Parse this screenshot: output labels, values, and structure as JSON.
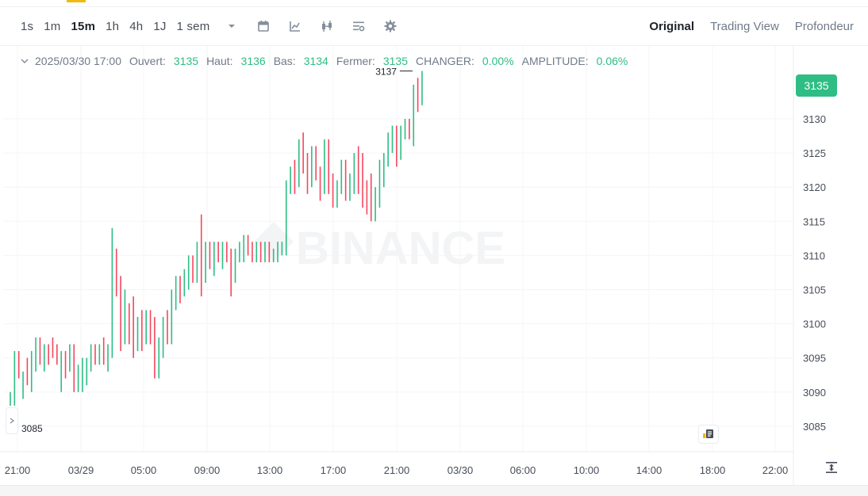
{
  "toolbar": {
    "intervals": [
      "1s",
      "1m",
      "15m",
      "1h",
      "4h",
      "1J",
      "1 sem"
    ],
    "active_interval": "15m",
    "views": [
      "Original",
      "Trading View",
      "Profondeur"
    ],
    "active_view": "Original",
    "icons": [
      "caret-down-icon",
      "calendar-icon",
      "line-chart-icon",
      "candles-icon",
      "indicators-icon",
      "gear-icon"
    ]
  },
  "legend": {
    "date": "2025/03/30 17:00",
    "open_label": "Ouvert:",
    "open": "3135",
    "high_label": "Haut:",
    "high": "3136",
    "low_label": "Bas:",
    "low": "3134",
    "close_label": "Fermer:",
    "close": "3135",
    "change_label": "CHANGER:",
    "change": "0.00%",
    "amplitude_label": "AMPLITUDE:",
    "amplitude": "0.06%"
  },
  "current_price": "3135",
  "max_marker": "3137",
  "min_marker": "3085",
  "colors": {
    "up": "#2ebd85",
    "down": "#f6465d",
    "accent": "#f0b90b"
  },
  "chart_data": {
    "type": "ohlc",
    "interval": "15m",
    "y_ticks": [
      3130,
      3125,
      3120,
      3115,
      3110,
      3105,
      3100,
      3095,
      3090,
      3085
    ],
    "x_ticks": [
      "21:00",
      "03/29",
      "05:00",
      "09:00",
      "13:00",
      "17:00",
      "21:00",
      "03/30",
      "06:00",
      "10:00",
      "14:00",
      "18:00",
      "22:00"
    ],
    "ylim": [
      3080,
      3141
    ],
    "candles": [
      [
        3088,
        3090,
        3088,
        3089
      ],
      [
        3089,
        3096,
        3088,
        3095
      ],
      [
        3095,
        3096,
        3092,
        3093
      ],
      [
        3091,
        3093,
        3089,
        3092
      ],
      [
        3093,
        3095,
        3091,
        3092
      ],
      [
        3092,
        3096,
        3090,
        3095
      ],
      [
        3094,
        3098,
        3093,
        3097
      ],
      [
        3096,
        3098,
        3094,
        3095
      ],
      [
        3094,
        3097,
        3093,
        3096
      ],
      [
        3096,
        3097,
        3094,
        3095
      ],
      [
        3097,
        3098,
        3095,
        3096
      ],
      [
        3096,
        3097,
        3094,
        3094
      ],
      [
        3093,
        3096,
        3090,
        3094
      ],
      [
        3094,
        3096,
        3092,
        3093
      ],
      [
        3094,
        3097,
        3093,
        3096
      ],
      [
        3096,
        3097,
        3090,
        3092
      ],
      [
        3091,
        3094,
        3090,
        3092
      ],
      [
        3091,
        3095,
        3090,
        3094
      ],
      [
        3092,
        3095,
        3091,
        3094
      ],
      [
        3094,
        3097,
        3093,
        3096
      ],
      [
        3096,
        3097,
        3094,
        3095
      ],
      [
        3095,
        3097,
        3094,
        3096
      ],
      [
        3096,
        3098,
        3094,
        3095
      ],
      [
        3094,
        3097,
        3093,
        3096
      ],
      [
        3096,
        3114,
        3095,
        3110
      ],
      [
        3109,
        3111,
        3104,
        3106
      ],
      [
        3106,
        3107,
        3096,
        3098
      ],
      [
        3098,
        3105,
        3097,
        3103
      ],
      [
        3102,
        3103,
        3097,
        3099
      ],
      [
        3099,
        3104,
        3095,
        3096
      ],
      [
        3098,
        3101,
        3096,
        3100
      ],
      [
        3100,
        3102,
        3096,
        3097
      ],
      [
        3098,
        3102,
        3097,
        3101
      ],
      [
        3101,
        3102,
        3097,
        3098
      ],
      [
        3097,
        3101,
        3092,
        3094
      ],
      [
        3094,
        3098,
        3092,
        3097
      ],
      [
        3097,
        3101,
        3095,
        3100
      ],
      [
        3100,
        3102,
        3097,
        3099
      ],
      [
        3098,
        3105,
        3097,
        3104
      ],
      [
        3104,
        3107,
        3102,
        3106
      ],
      [
        3106,
        3107,
        3103,
        3105
      ],
      [
        3105,
        3108,
        3104,
        3107
      ],
      [
        3107,
        3110,
        3105,
        3108
      ],
      [
        3109,
        3110,
        3106,
        3107
      ],
      [
        3107,
        3112,
        3106,
        3111
      ],
      [
        3111,
        3116,
        3104,
        3108
      ],
      [
        3107,
        3112,
        3106,
        3111
      ],
      [
        3111,
        3112,
        3108,
        3109
      ],
      [
        3109,
        3112,
        3107,
        3111
      ],
      [
        3111,
        3112,
        3109,
        3110
      ],
      [
        3110,
        3112,
        3108,
        3111
      ],
      [
        3111,
        3112,
        3109,
        3110
      ],
      [
        3110,
        3111,
        3104,
        3106
      ],
      [
        3107,
        3111,
        3106,
        3110
      ],
      [
        3110,
        3112,
        3109,
        3111
      ],
      [
        3111,
        3113,
        3109,
        3112
      ],
      [
        3112,
        3113,
        3110,
        3111
      ],
      [
        3111,
        3112,
        3109,
        3110
      ],
      [
        3110,
        3112,
        3109,
        3111
      ],
      [
        3111,
        3112,
        3109,
        3110
      ],
      [
        3110,
        3112,
        3109,
        3111
      ],
      [
        3111,
        3112,
        3109,
        3110
      ],
      [
        3110,
        3111,
        3109,
        3110
      ],
      [
        3110,
        3112,
        3109,
        3111
      ],
      [
        3111,
        3112,
        3110,
        3111
      ],
      [
        3111,
        3121,
        3110,
        3120
      ],
      [
        3120,
        3123,
        3119,
        3122
      ],
      [
        3122,
        3124,
        3119,
        3120
      ],
      [
        3120,
        3127,
        3120,
        3126
      ],
      [
        3126,
        3128,
        3122,
        3124
      ],
      [
        3124,
        3125,
        3119,
        3121
      ],
      [
        3121,
        3126,
        3120,
        3125
      ],
      [
        3125,
        3126,
        3121,
        3122
      ],
      [
        3122,
        3123,
        3118,
        3120
      ],
      [
        3120,
        3127,
        3119,
        3126
      ],
      [
        3126,
        3127,
        3119,
        3121
      ],
      [
        3121,
        3122,
        3117,
        3118
      ],
      [
        3118,
        3121,
        3117,
        3120
      ],
      [
        3120,
        3124,
        3119,
        3123
      ],
      [
        3123,
        3124,
        3118,
        3120
      ],
      [
        3120,
        3122,
        3118,
        3121
      ],
      [
        3121,
        3125,
        3119,
        3124
      ],
      [
        3124,
        3126,
        3119,
        3121
      ],
      [
        3121,
        3125,
        3117,
        3118
      ],
      [
        3118,
        3121,
        3116,
        3117
      ],
      [
        3117,
        3122,
        3115,
        3116
      ],
      [
        3116,
        3120,
        3115,
        3119
      ],
      [
        3119,
        3124,
        3117,
        3122
      ],
      [
        3122,
        3125,
        3120,
        3124
      ],
      [
        3124,
        3128,
        3123,
        3127
      ],
      [
        3127,
        3129,
        3125,
        3128
      ],
      [
        3128,
        3129,
        3123,
        3125
      ],
      [
        3125,
        3129,
        3124,
        3128
      ],
      [
        3128,
        3130,
        3127,
        3129
      ],
      [
        3129,
        3130,
        3127,
        3128
      ],
      [
        3128,
        3135,
        3126,
        3134
      ],
      [
        3134,
        3136,
        3131,
        3132
      ],
      [
        3132,
        3137,
        3132,
        3135
      ]
    ]
  },
  "watermark_text": "BINANCE"
}
